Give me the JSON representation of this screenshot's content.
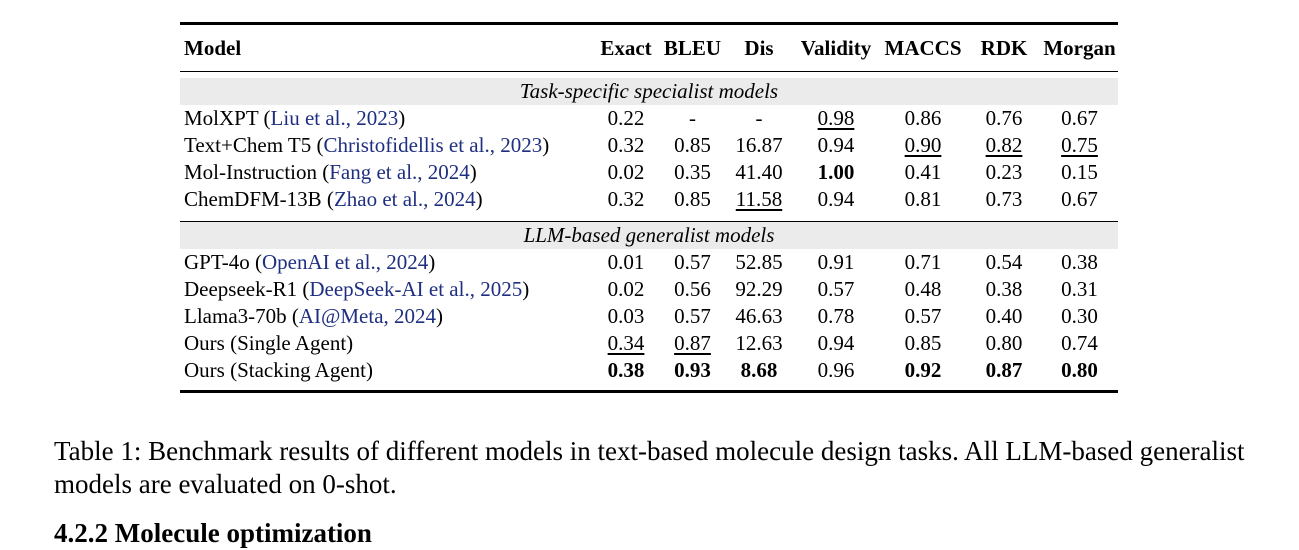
{
  "table": {
    "columns": [
      "Model",
      "Exact",
      "BLEU",
      "Dis",
      "Validity",
      "MACCS",
      "RDK",
      "Morgan"
    ],
    "groups": [
      {
        "title": "Task-specific specialist models",
        "rows": [
          {
            "name": "MolXPT (",
            "cite": "Liu et al., 2023",
            "close": ")",
            "values": [
              "0.22",
              "-",
              "-",
              "0.98",
              "0.86",
              "0.76",
              "0.67"
            ],
            "underline": [
              3
            ],
            "bold": []
          },
          {
            "name": "Text+Chem T5 (",
            "cite": "Christofidellis et al., 2023",
            "close": ")",
            "values": [
              "0.32",
              "0.85",
              "16.87",
              "0.94",
              "0.90",
              "0.82",
              "0.75"
            ],
            "underline": [
              4,
              5,
              6
            ],
            "bold": []
          },
          {
            "name": "Mol-Instruction (",
            "cite": "Fang et al., 2024",
            "close": ")",
            "values": [
              "0.02",
              "0.35",
              "41.40",
              "1.00",
              "0.41",
              "0.23",
              "0.15"
            ],
            "underline": [],
            "bold": [
              3
            ]
          },
          {
            "name": "ChemDFM-13B (",
            "cite": "Zhao et al., 2024",
            "close": ")",
            "values": [
              "0.32",
              "0.85",
              "11.58",
              "0.94",
              "0.81",
              "0.73",
              "0.67"
            ],
            "underline": [
              2
            ],
            "bold": []
          }
        ]
      },
      {
        "title": "LLM-based generalist models",
        "rows": [
          {
            "name": "GPT-4o (",
            "cite": "OpenAI et al., 2024",
            "close": ")",
            "values": [
              "0.01",
              "0.57",
              "52.85",
              "0.91",
              "0.71",
              "0.54",
              "0.38"
            ],
            "underline": [],
            "bold": []
          },
          {
            "name": "Deepseek-R1 (",
            "cite": "DeepSeek-AI et al., 2025",
            "close": ")",
            "values": [
              "0.02",
              "0.56",
              "92.29",
              "0.57",
              "0.48",
              "0.38",
              "0.31"
            ],
            "underline": [],
            "bold": []
          },
          {
            "name": "Llama3-70b (",
            "cite": "AI@Meta, 2024",
            "close": ")",
            "values": [
              "0.03",
              "0.57",
              "46.63",
              "0.78",
              "0.57",
              "0.40",
              "0.30"
            ],
            "underline": [],
            "bold": []
          },
          {
            "name": "Ours (Single Agent)",
            "cite": "",
            "close": "",
            "values": [
              "0.34",
              "0.87",
              "12.63",
              "0.94",
              "0.85",
              "0.80",
              "0.74"
            ],
            "underline": [
              0,
              1
            ],
            "bold": []
          },
          {
            "name": "Ours (Stacking Agent)",
            "cite": "",
            "close": "",
            "values": [
              "0.38",
              "0.93",
              "8.68",
              "0.96",
              "0.92",
              "0.87",
              "0.80"
            ],
            "underline": [],
            "bold": [
              0,
              1,
              2,
              4,
              5,
              6
            ]
          }
        ]
      }
    ]
  },
  "caption": "Table 1: Benchmark results of different models in text-based molecule design tasks. All LLM-based generalist models are evaluated on 0-shot.",
  "next_heading": "4.2.2    Molecule optimization"
}
